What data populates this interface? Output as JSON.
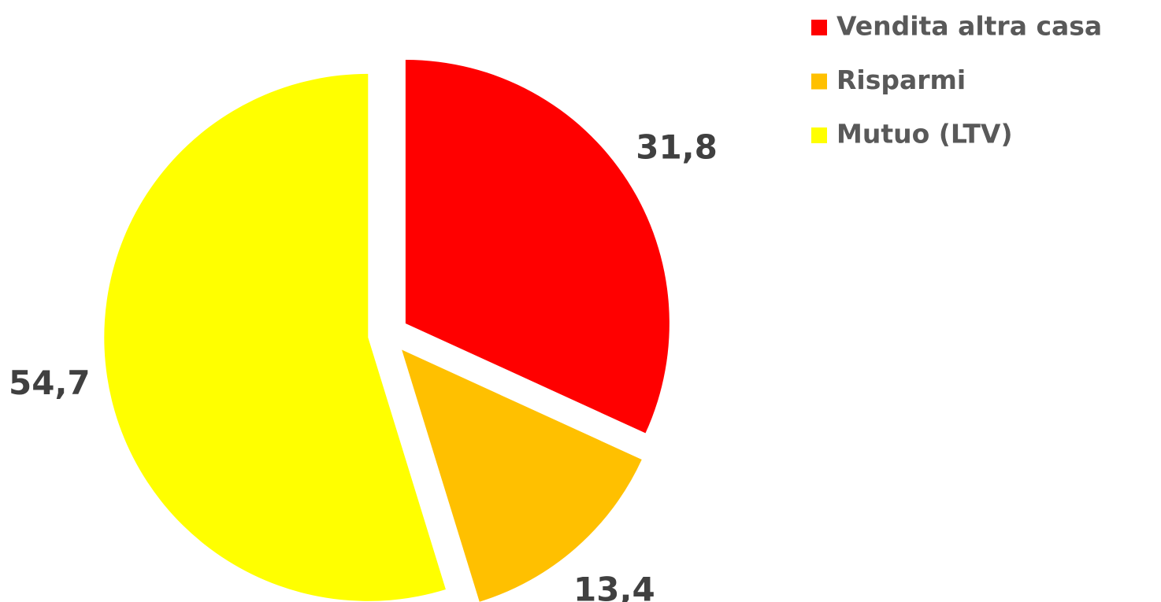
{
  "chart_data": {
    "type": "pie",
    "categories": [
      "Vendita altra casa",
      "Risparmi",
      "Mutuo (LTV)"
    ],
    "values": [
      31.8,
      13.4,
      54.7
    ],
    "value_labels": [
      "31,8",
      "13,4",
      "54,7"
    ],
    "colors": [
      "#ff0000",
      "#ffc000",
      "#ffff00"
    ],
    "legend": "top-right"
  }
}
